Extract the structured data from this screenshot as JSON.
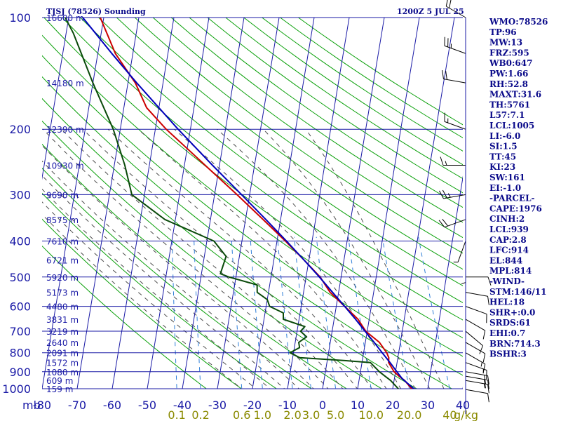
{
  "header": {
    "station": "TJSJ (78526) Sounding",
    "time": "1200Z  5 JUL 25"
  },
  "colors": {
    "axis": "#1a1aa6",
    "isobar": "#1a1aa6",
    "isotherm": "#1a1aa6",
    "dry_adiabat": "#0aa00a",
    "moist_adiabat": "#4c4c4c",
    "mixing_ratio": "#2f7fd8",
    "temperature": "#cc0000",
    "dewpoint": "#0a4a0a",
    "parcel": "#0000bb",
    "wind_barb": "#000000",
    "text": "#0a0a8a"
  },
  "indices": [
    "WMO:78526",
    "TP:96",
    "MW:13",
    "FRZ:595",
    "WB0:647",
    "PW:1.66",
    "RH:52.8",
    "MAXT:31.6",
    "TH:5761",
    "L57:7.1",
    "LCL:1005",
    "LI:-6.0",
    "SI:1.5",
    "TT:45",
    "KI:23",
    "SW:161",
    "EI:-1.0",
    "-PARCEL-",
    "CAPE:1976",
    "CINH:2",
    "LCL:939",
    "CAP:2.8",
    "LFC:914",
    "EL:844",
    "MPL:814",
    "-WIND-",
    "STM:146/11",
    "HEL:18",
    "SHR+:0.0",
    "SRDS:61",
    "EHI:0.7",
    "BRN:714.3",
    "BSHR:3"
  ],
  "chart_data": {
    "type": "line",
    "title": "TJSJ (78526) Sounding",
    "subtitle": "1200Z  5 JUL 25",
    "xlabel": "",
    "ylabel": "mb",
    "x_axis": "temperature (skewed)",
    "xlim": [
      -80,
      40
    ],
    "ylim": [
      1000,
      100
    ],
    "y_scale": "log",
    "pressure_levels": [
      100,
      200,
      300,
      400,
      500,
      600,
      700,
      800,
      900,
      1000
    ],
    "pressure_labels": [
      "100",
      "200",
      "300",
      "400",
      "500",
      "600",
      "700",
      "800",
      "900",
      "1000"
    ],
    "temperature_ticks": [
      -80,
      -70,
      -60,
      -50,
      -40,
      -30,
      -20,
      -10,
      0,
      10,
      20,
      30,
      40
    ],
    "temperature_tick_labels": [
      "-80",
      "-70",
      "-60",
      "-50",
      "-40",
      "-30",
      "-20",
      "-10",
      "0",
      "10",
      "20",
      "30",
      "40"
    ],
    "mixing_ratio_labels": [
      "0.1",
      "0.2",
      "0.6",
      "1.0",
      "2.0",
      "3.0",
      "5.0",
      "10.0",
      "20.0",
      "40"
    ],
    "mixing_ratio_values": [
      0.1,
      0.2,
      0.6,
      1.0,
      2.0,
      3.0,
      5.0,
      10.0,
      20.0,
      40.0
    ],
    "unit_label": "g/kg",
    "height_labels": [
      {
        "p": 100,
        "label": "16600 m"
      },
      {
        "p": 150,
        "label": "14180 m"
      },
      {
        "p": 200,
        "label": "12390 m"
      },
      {
        "p": 250,
        "label": "10930 m"
      },
      {
        "p": 300,
        "label": "9690 m"
      },
      {
        "p": 350,
        "label": "8575 m"
      },
      {
        "p": 400,
        "label": "7610 m"
      },
      {
        "p": 450,
        "label": "6721 m"
      },
      {
        "p": 500,
        "label": "5920 m"
      },
      {
        "p": 550,
        "label": "5173 m"
      },
      {
        "p": 600,
        "label": "4480 m"
      },
      {
        "p": 650,
        "label": "3831 m"
      },
      {
        "p": 700,
        "label": "3219 m"
      },
      {
        "p": 750,
        "label": "2640 m"
      },
      {
        "p": 800,
        "label": "2091 m"
      },
      {
        "p": 850,
        "label": "1572 m"
      },
      {
        "p": 900,
        "label": "1080 m"
      },
      {
        "p": 950,
        "label": "609 m"
      },
      {
        "p": 1000,
        "label": "159 m"
      }
    ],
    "series": [
      {
        "key": "temperature",
        "points": [
          [
            1012,
            27.0
          ],
          [
            1000,
            25.4
          ],
          [
            950,
            23.0
          ],
          [
            925,
            21.2
          ],
          [
            900,
            19.6
          ],
          [
            850,
            17.6
          ],
          [
            825,
            17.4
          ],
          [
            800,
            16.6
          ],
          [
            750,
            14.0
          ],
          [
            700,
            9.6
          ],
          [
            650,
            6.8
          ],
          [
            600,
            2.4
          ],
          [
            550,
            -2.4
          ],
          [
            500,
            -6.0
          ],
          [
            450,
            -11.4
          ],
          [
            400,
            -17.6
          ],
          [
            350,
            -25.0
          ],
          [
            300,
            -33.6
          ],
          [
            250,
            -44.1
          ],
          [
            225,
            -50.1
          ],
          [
            200,
            -56.9
          ],
          [
            175,
            -63.5
          ],
          [
            150,
            -67.9
          ],
          [
            125,
            -75.0
          ],
          [
            100,
            -81.0
          ]
        ]
      },
      {
        "key": "dewpoint",
        "points": [
          [
            1012,
            22.0
          ],
          [
            1000,
            21.6
          ],
          [
            950,
            19.0
          ],
          [
            925,
            17.2
          ],
          [
            900,
            15.4
          ],
          [
            850,
            12.4
          ],
          [
            840,
            5.0
          ],
          [
            825,
            -8.0
          ],
          [
            800,
            -11.0
          ],
          [
            775,
            -8.5
          ],
          [
            750,
            -9.0
          ],
          [
            725,
            -7.0
          ],
          [
            700,
            -9.0
          ],
          [
            680,
            -8.0
          ],
          [
            650,
            -14.5
          ],
          [
            625,
            -14.8
          ],
          [
            600,
            -19.0
          ],
          [
            575,
            -20.0
          ],
          [
            550,
            -23.2
          ],
          [
            525,
            -23.6
          ],
          [
            500,
            -32.0
          ],
          [
            490,
            -34.6
          ],
          [
            440,
            -33.8
          ],
          [
            400,
            -38.0
          ],
          [
            350,
            -53.0
          ],
          [
            300,
            -63.6
          ],
          [
            250,
            -67.0
          ],
          [
            200,
            -72.0
          ],
          [
            150,
            -80.0
          ],
          [
            110,
            -88.0
          ],
          [
            100,
            -91.0
          ]
        ]
      },
      {
        "key": "parcel",
        "points": [
          [
            1012,
            27.8
          ],
          [
            1000,
            26.0
          ],
          [
            939,
            22.2
          ],
          [
            900,
            20.4
          ],
          [
            850,
            18.0
          ],
          [
            800,
            15.3
          ],
          [
            750,
            12.5
          ],
          [
            700,
            9.4
          ],
          [
            650,
            6.1
          ],
          [
            600,
            2.4
          ],
          [
            550,
            -1.7
          ],
          [
            500,
            -6.2
          ],
          [
            450,
            -11.4
          ],
          [
            400,
            -17.3
          ],
          [
            350,
            -24.2
          ],
          [
            300,
            -32.3
          ],
          [
            250,
            -42.0
          ],
          [
            200,
            -53.5
          ],
          [
            150,
            -67.5
          ],
          [
            125,
            -76.0
          ],
          [
            100,
            -86.0
          ]
        ]
      }
    ],
    "winds": [
      {
        "p": 1005,
        "dir": 100,
        "spd": 10
      },
      {
        "p": 950,
        "dir": 100,
        "spd": 15
      },
      {
        "p": 925,
        "dir": 100,
        "spd": 20
      },
      {
        "p": 900,
        "dir": 100,
        "spd": 20
      },
      {
        "p": 850,
        "dir": 110,
        "spd": 15
      },
      {
        "p": 800,
        "dir": 120,
        "spd": 15
      },
      {
        "p": 750,
        "dir": 120,
        "spd": 10
      },
      {
        "p": 700,
        "dir": 130,
        "spd": 10
      },
      {
        "p": 650,
        "dir": 120,
        "spd": 10
      },
      {
        "p": 600,
        "dir": 110,
        "spd": 10
      },
      {
        "p": 550,
        "dir": 100,
        "spd": 10
      },
      {
        "p": 500,
        "dir": 90,
        "spd": 10
      },
      {
        "p": 450,
        "dir": 180,
        "spd": 5
      },
      {
        "p": 400,
        "dir": 200,
        "spd": 5
      },
      {
        "p": 350,
        "dir": 250,
        "spd": 20
      },
      {
        "p": 300,
        "dir": 260,
        "spd": 25
      },
      {
        "p": 250,
        "dir": 270,
        "spd": 15
      },
      {
        "p": 200,
        "dir": 290,
        "spd": 15
      },
      {
        "p": 150,
        "dir": 280,
        "spd": 20
      },
      {
        "p": 125,
        "dir": 290,
        "spd": 25
      },
      {
        "p": 100,
        "dir": 300,
        "spd": 20
      }
    ]
  }
}
